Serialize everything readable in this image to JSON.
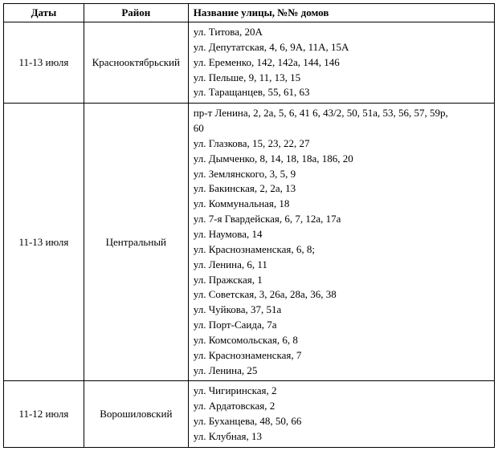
{
  "headers": {
    "dates": "Даты",
    "district": "Район",
    "streets": "Название улицы, №№ домов"
  },
  "rows": [
    {
      "dates": "11-13 июля",
      "district": "Краснооктябрьский",
      "streets": [
        "ул. Титова, 20А",
        "ул. Депутатская, 4, 6, 9А, 11А, 15А",
        "ул. Еременко, 142, 142а, 144, 146",
        "ул. Пельше, 9, 11, 13, 15",
        "ул. Таращанцев, 55, 61, 63"
      ]
    },
    {
      "dates": "11-13 июля",
      "district": "Центральный",
      "streets": [
        "пр-т Ленина, 2, 2а, 5, 6, 41 6, 43/2, 50, 51а, 53, 56, 57, 59р,",
        "60",
        "ул. Глазкова, 15, 23, 22, 27",
        "ул. Дымченко, 8, 14, 18, 18а, 186, 20",
        "ул. Землянского, 3, 5, 9",
        "ул. Бакинская, 2, 2а, 13",
        "ул. Коммунальная, 18",
        "ул. 7-я Гвардейская, 6, 7, 12а, 17а",
        "ул. Наумова, 14",
        "ул. Краснознаменская, 6, 8;",
        "ул. Ленина, 6, 11",
        "ул. Пражская, 1",
        "ул. Советская, 3, 26а, 28а, 36, 38",
        "ул. Чуйкова, 37, 51а",
        "ул. Порт-Саида, 7а",
        "ул. Комсомольская, 6, 8",
        "ул. Краснознаменская, 7",
        "ул. Ленина, 25"
      ]
    },
    {
      "dates": "11-12 июля",
      "district": "Ворошиловский",
      "streets": [
        "ул. Чигиринская, 2",
        "ул. Ардатовская, 2",
        "ул. Буханцева, 48, 50, 66",
        "ул. Клубная, 13"
      ]
    }
  ]
}
